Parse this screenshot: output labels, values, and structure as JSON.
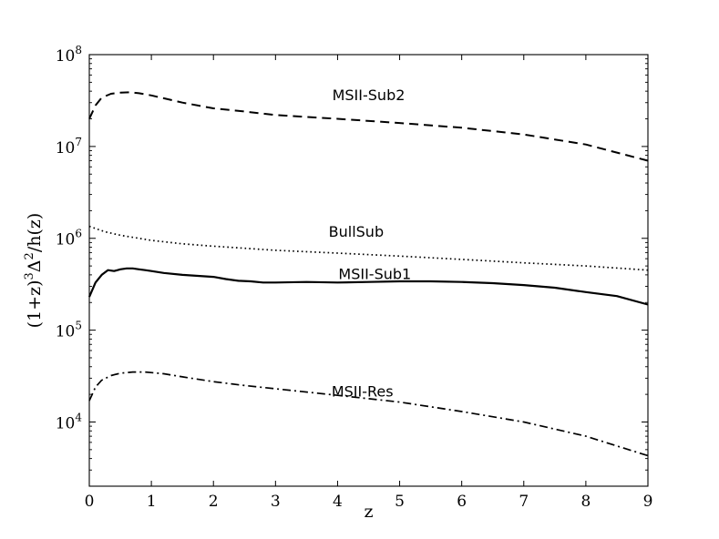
{
  "chart_data": {
    "type": "line",
    "xlabel": "z",
    "ylabel_parts": [
      "(1+z)",
      "3",
      "Δ",
      "2",
      "/h(z)"
    ],
    "xlim": [
      0,
      9
    ],
    "ylim": [
      2000,
      100000000
    ],
    "yscale": "log",
    "grid": false,
    "x_ticks": [
      0,
      1,
      2,
      3,
      4,
      5,
      6,
      7,
      8,
      9
    ],
    "x_tick_labels": [
      "0",
      "1",
      "2",
      "3",
      "4",
      "5",
      "6",
      "7",
      "8",
      "9"
    ],
    "y_ticks": [
      10000,
      100000,
      1000000,
      10000000,
      100000000
    ],
    "y_tick_labels": [
      {
        "base": "10",
        "exp": "4"
      },
      {
        "base": "10",
        "exp": "5"
      },
      {
        "base": "10",
        "exp": "6"
      },
      {
        "base": "10",
        "exp": "7"
      },
      {
        "base": "10",
        "exp": "8"
      }
    ],
    "series": [
      {
        "name": "MSII-Sub2",
        "style": "dashed",
        "label_at": [
          4.5,
          32000000
        ],
        "x": [
          0,
          0.1,
          0.2,
          0.35,
          0.5,
          0.65,
          0.8,
          1,
          1.5,
          2,
          2.5,
          3,
          4,
          5,
          6,
          7,
          8,
          9
        ],
        "y": [
          20000000,
          28000000,
          34000000,
          37500000,
          38500000,
          39000000,
          38000000,
          36000000,
          30000000,
          26000000,
          24000000,
          22000000,
          20000000,
          18000000,
          16000000,
          13500000,
          10500000,
          7000000
        ]
      },
      {
        "name": "BullSub",
        "style": "dotted",
        "label_at": [
          4.3,
          1040000
        ],
        "x": [
          0,
          0.25,
          0.5,
          1,
          1.5,
          2,
          3,
          4,
          5,
          6,
          7,
          8,
          9
        ],
        "y": [
          1350000,
          1180000,
          1080000,
          950000,
          870000,
          820000,
          740000,
          690000,
          640000,
          590000,
          540000,
          500000,
          450000
        ]
      },
      {
        "name": "MSII-Sub1",
        "style": "solid",
        "label_at": [
          4.6,
          360000
        ],
        "x": [
          0,
          0.1,
          0.2,
          0.3,
          0.4,
          0.5,
          0.6,
          0.7,
          0.8,
          0.9,
          1,
          1.2,
          1.5,
          2,
          2.2,
          2.4,
          2.6,
          2.8,
          3,
          3.5,
          4,
          4.5,
          5,
          5.5,
          6,
          6.5,
          7,
          7.5,
          8,
          8.5,
          9
        ],
        "y": [
          230000,
          330000,
          400000,
          450000,
          440000,
          460000,
          470000,
          470000,
          460000,
          450000,
          440000,
          420000,
          400000,
          380000,
          360000,
          345000,
          340000,
          330000,
          330000,
          335000,
          330000,
          335000,
          340000,
          340000,
          335000,
          325000,
          310000,
          290000,
          260000,
          235000,
          190000
        ]
      },
      {
        "name": "MSII-Res",
        "style": "dashdot",
        "label_at": [
          4.4,
          19000
        ],
        "x": [
          0,
          0.1,
          0.2,
          0.35,
          0.5,
          0.7,
          0.9,
          1.2,
          1.5,
          2,
          2.5,
          3,
          4,
          5,
          6,
          7,
          8,
          9
        ],
        "y": [
          17000,
          24000,
          28500,
          32000,
          34000,
          35000,
          35000,
          33500,
          31000,
          27500,
          25000,
          23000,
          19500,
          16500,
          13000,
          10000,
          7000,
          4300
        ]
      }
    ]
  }
}
